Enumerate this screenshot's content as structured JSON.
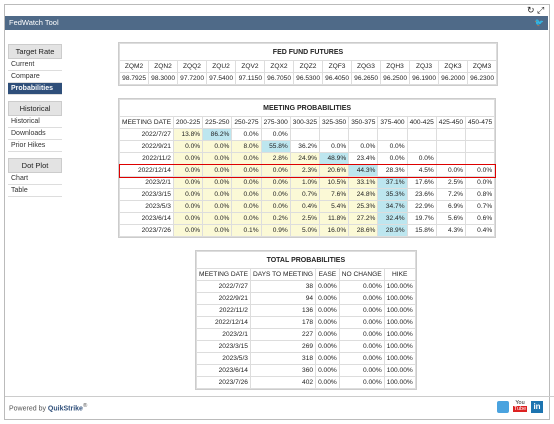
{
  "header": {
    "title": "FedWatch Tool"
  },
  "sidebar": [
    {
      "heading": "Target Rate",
      "items": [
        "Current",
        "Compare",
        "Probabilities"
      ]
    },
    {
      "heading": "Historical",
      "items": [
        "Historical",
        "Downloads",
        "Prior Hikes"
      ]
    },
    {
      "heading": "Dot Plot",
      "items": [
        "Chart",
        "Table"
      ]
    }
  ],
  "selected_item": "Probabilities",
  "futures": {
    "title": "FED FUND FUTURES",
    "columns": [
      "ZQM2",
      "ZQN2",
      "ZQQ2",
      "ZQU2",
      "ZQV2",
      "ZQX2",
      "ZQZ2",
      "ZQF3",
      "ZQG3",
      "ZQH3",
      "ZQJ3",
      "ZQK3",
      "ZQM3"
    ],
    "values": [
      "98.7925",
      "98.3000",
      "97.7200",
      "97.5400",
      "97.1150",
      "96.7050",
      "96.5300",
      "96.4050",
      "96.2650",
      "96.2500",
      "96.1900",
      "96.2000",
      "96.2300"
    ]
  },
  "meeting": {
    "title": "MEETING PROBABILITIES",
    "columns": [
      "MEETING DATE",
      "200-225",
      "225-250",
      "250-275",
      "275-300",
      "300-325",
      "325-350",
      "350-375",
      "375-400",
      "400-425",
      "425-450",
      "450-475"
    ],
    "rows": [
      [
        "2022/7/27",
        "13.8%",
        "86.2%",
        "0.0%",
        "0.0%",
        null,
        null,
        null,
        null,
        null,
        null,
        null
      ],
      [
        "2022/9/21",
        "0.0%",
        "0.0%",
        "8.0%",
        "55.8%",
        "36.2%",
        "0.0%",
        "0.0%",
        "0.0%",
        null,
        null,
        null
      ],
      [
        "2022/11/2",
        "0.0%",
        "0.0%",
        "0.0%",
        "2.8%",
        "24.9%",
        "48.9%",
        "23.4%",
        "0.0%",
        "0.0%",
        null,
        null
      ],
      [
        "2022/12/14",
        "0.0%",
        "0.0%",
        "0.0%",
        "0.0%",
        "2.3%",
        "20.6%",
        "44.3%",
        "28.3%",
        "4.5%",
        "0.0%",
        "0.0%"
      ],
      [
        "2023/2/1",
        "0.0%",
        "0.0%",
        "0.0%",
        "0.0%",
        "1.0%",
        "10.5%",
        "33.1%",
        "37.1%",
        "17.6%",
        "2.5%",
        "0.0%"
      ],
      [
        "2023/3/15",
        "0.0%",
        "0.0%",
        "0.0%",
        "0.0%",
        "0.7%",
        "7.6%",
        "24.8%",
        "35.3%",
        "23.6%",
        "7.2%",
        "0.8%"
      ],
      [
        "2023/5/3",
        "0.0%",
        "0.0%",
        "0.0%",
        "0.0%",
        "0.4%",
        "5.4%",
        "25.3%",
        "34.7%",
        "22.9%",
        "6.9%",
        "0.7%"
      ],
      [
        "2023/6/14",
        "0.0%",
        "0.0%",
        "0.0%",
        "0.2%",
        "2.5%",
        "11.8%",
        "27.2%",
        "32.4%",
        "19.7%",
        "5.6%",
        "0.6%"
      ],
      [
        "2023/7/26",
        "0.0%",
        "0.0%",
        "0.1%",
        "0.9%",
        "5.0%",
        "16.0%",
        "28.6%",
        "28.9%",
        "15.8%",
        "4.3%",
        "0.4%"
      ]
    ],
    "outlined_row": "2022/12/14"
  },
  "total": {
    "title": "TOTAL PROBABILITIES",
    "columns": [
      "MEETING DATE",
      "DAYS TO MEETING",
      "EASE",
      "NO CHANGE",
      "HIKE"
    ],
    "rows": [
      [
        "2022/7/27",
        "38",
        "0.00%",
        "0.00%",
        "100.00%"
      ],
      [
        "2022/9/21",
        "94",
        "0.00%",
        "0.00%",
        "100.00%"
      ],
      [
        "2022/11/2",
        "136",
        "0.00%",
        "0.00%",
        "100.00%"
      ],
      [
        "2022/12/14",
        "178",
        "0.00%",
        "0.00%",
        "100.00%"
      ],
      [
        "2023/2/1",
        "227",
        "0.00%",
        "0.00%",
        "100.00%"
      ],
      [
        "2023/3/15",
        "269",
        "0.00%",
        "0.00%",
        "100.00%"
      ],
      [
        "2023/5/3",
        "318",
        "0.00%",
        "0.00%",
        "100.00%"
      ],
      [
        "2023/6/14",
        "360",
        "0.00%",
        "0.00%",
        "100.00%"
      ],
      [
        "2023/7/26",
        "402",
        "0.00%",
        "0.00%",
        "100.00%"
      ]
    ]
  },
  "footer": {
    "text": "Powered by",
    "brand": "QuikStrike",
    "mark": "®"
  },
  "social": {
    "youtube_top": "You",
    "youtube_bottom": "Tube",
    "linkedin": "in"
  }
}
